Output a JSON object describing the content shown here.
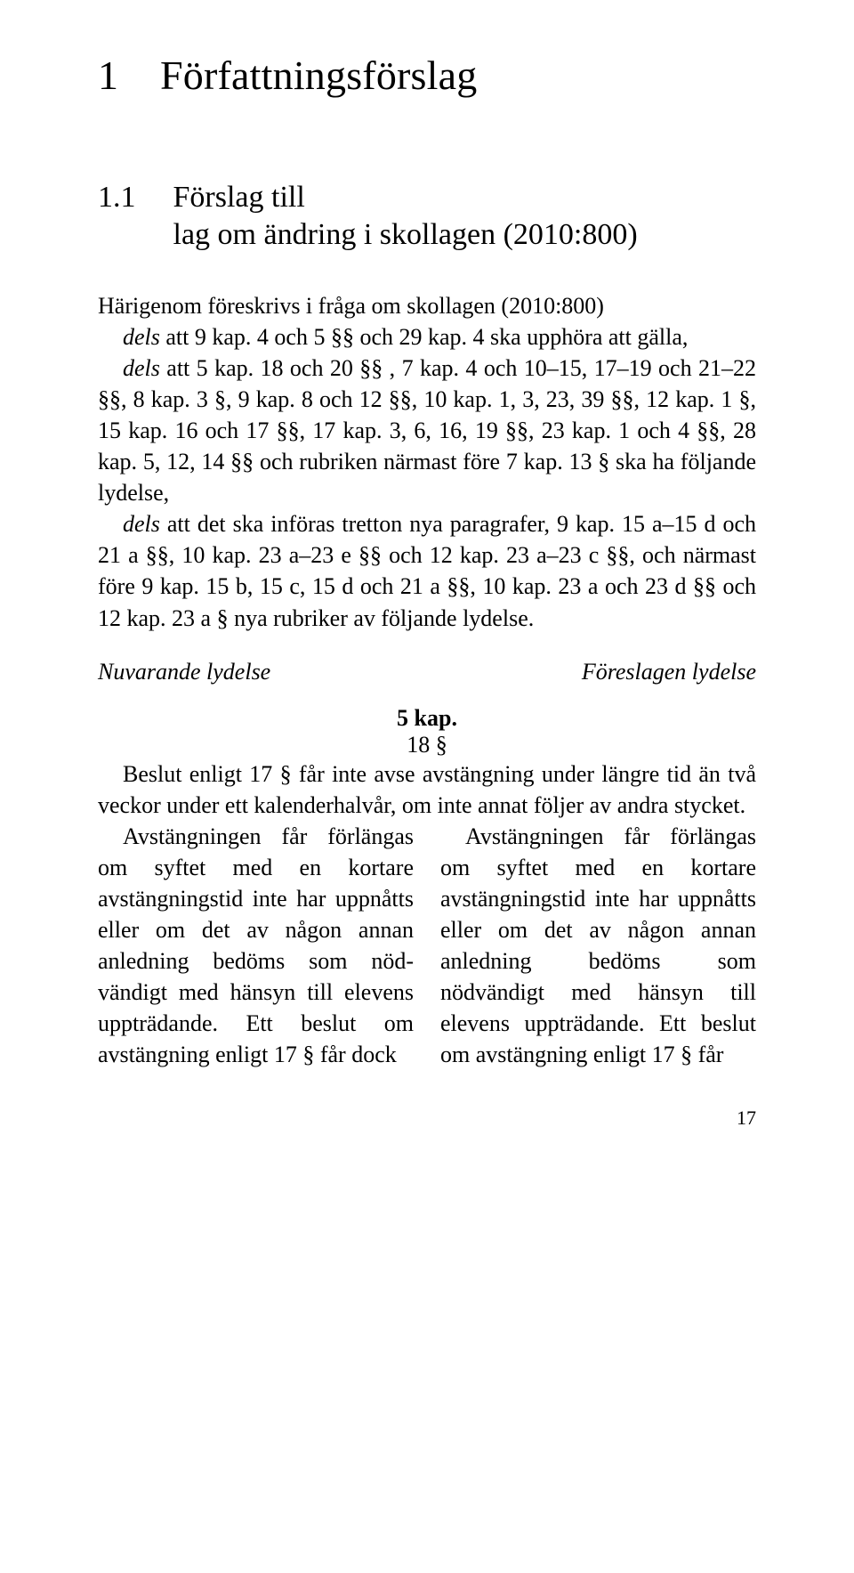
{
  "chapter": {
    "number": "1",
    "title": "Författningsförslag"
  },
  "section": {
    "number": "1.1",
    "title": "Förslag till\nlag om ändring i skollagen (2010:800)"
  },
  "intro_p1": "Härigenom föreskrivs i fråga om skollagen (2010:800)",
  "intro_p2_prefix_italic": "dels",
  "intro_p2_rest": " att 9 kap. 4 och 5 §§ och 29 kap. 4 ska upphöra att gälla,",
  "intro_p3_prefix_italic": "dels",
  "intro_p3_rest": " att 5 kap. 18 och 20 §§ , 7 kap. 4 och 10–15, 17–19 och 21–22 §§, 8 kap. 3 §, 9 kap. 8 och 12 §§, 10 kap. 1, 3, 23, 39 §§, 12 kap. 1 §, 15 kap. 16 och 17 §§, 17 kap. 3, 6, 16, 19 §§, 23 kap. 1 och 4 §§, 28 kap. 5, 12, 14 §§ och rubriken närmast före 7 kap. 13 § ska ha följande lydelse,",
  "intro_p4_prefix_italic": "dels",
  "intro_p4_rest": " att det ska införas tretton nya paragrafer, 9 kap. 15 a–15 d och 21 a §§, 10 kap. 23 a–23 e §§ och 12 kap. 23 a–23 c §§, och närmast före 9 kap. 15 b, 15 c, 15 d och 21 a §§, 10 kap. 23 a och 23 d §§ och 12 kap. 23 a § nya rubriker av följande lydelse.",
  "col_heads": {
    "left": "Nuvarande lydelse",
    "right": "Föreslagen lydelse"
  },
  "kap_label": "5 kap.",
  "para_label": "18 §",
  "full_width_para": "Beslut enligt 17 § får inte avse avstängning under längre tid än två veckor under ett kalenderhalvår, om inte annat följer av andra stycket.",
  "col_left": "Avstängningen får förlängas om syftet med en kortare avstängningstid inte har uppnåtts eller om det av någon annan anledning bedöms som nöd-vändigt med hänsyn till elevens uppträdande. Ett beslut om avstängning enligt 17 § får dock",
  "col_right": "Avstängningen får förlängas om syftet med en kortare avstängningstid inte har uppnåtts eller om det av någon annan anledning bedöms som nödvändigt med hänsyn till elevens uppträdande. Ett beslut om avstängning enligt 17 § får",
  "page_number": "17"
}
